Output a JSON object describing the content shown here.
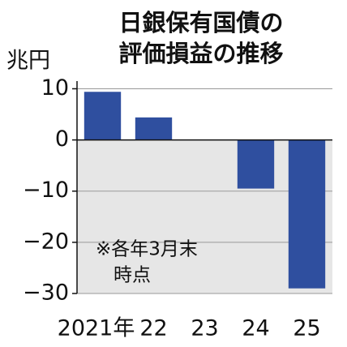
{
  "chart_data": {
    "type": "bar",
    "title": [
      "日銀保有国債の",
      "評価損益の推移"
    ],
    "y_label": "兆円",
    "annotation": [
      "※各年3月末",
      "時点"
    ],
    "categories": [
      "2021年",
      "22",
      "23",
      "24",
      "25"
    ],
    "values": [
      9.4,
      4.4,
      0,
      -9.5,
      -29
    ],
    "color": "#2f4f9f",
    "ylim": [
      -30,
      11.5
    ],
    "yticks": [
      {
        "value": -30,
        "label": "−30"
      },
      {
        "value": -20,
        "label": "−20"
      },
      {
        "value": -10,
        "label": "−10"
      },
      0,
      10
    ],
    "grid": true
  }
}
